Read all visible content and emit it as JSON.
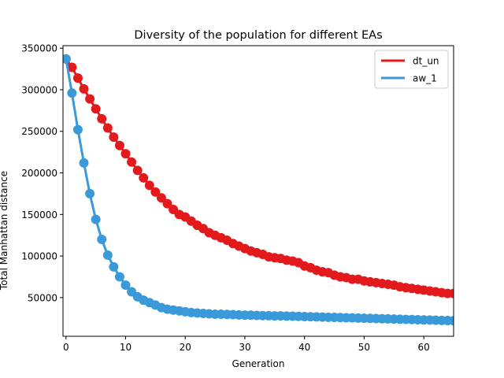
{
  "chart_data": {
    "type": "line",
    "title": "Diversity of the population for different EAs",
    "xlabel": "Generation",
    "ylabel": "Total Manhattan distance",
    "xlim": [
      -0.5,
      65
    ],
    "ylim": [
      3500,
      353000
    ],
    "x_ticks": [
      0,
      10,
      20,
      30,
      40,
      50,
      60
    ],
    "y_ticks": [
      50000,
      100000,
      150000,
      200000,
      250000,
      300000,
      350000
    ],
    "x_tick_labels": [
      "0",
      "10",
      "20",
      "30",
      "40",
      "50",
      "60"
    ],
    "y_tick_labels": [
      "50000",
      "100000",
      "150000",
      "200000",
      "250000",
      "300000",
      "350000"
    ],
    "grid": false,
    "legend_position": "top-right",
    "series": [
      {
        "name": "dt_un",
        "color": "#e31a1c",
        "marker": "circle",
        "x": [
          0,
          1,
          2,
          3,
          4,
          5,
          6,
          7,
          8,
          9,
          10,
          11,
          12,
          13,
          14,
          15,
          16,
          17,
          18,
          19,
          20,
          21,
          22,
          23,
          24,
          25,
          26,
          27,
          28,
          29,
          30,
          31,
          32,
          33,
          34,
          35,
          36,
          37,
          38,
          39,
          40,
          41,
          42,
          43,
          44,
          45,
          46,
          47,
          48,
          49,
          50,
          51,
          52,
          53,
          54,
          55,
          56,
          57,
          58,
          59,
          60,
          61,
          62,
          63,
          64,
          65
        ],
        "values": [
          337000,
          327000,
          314000,
          301000,
          289000,
          277000,
          265000,
          254000,
          243000,
          233000,
          223000,
          213000,
          203000,
          194000,
          185000,
          177000,
          170000,
          163000,
          156000,
          150000,
          147000,
          142000,
          137000,
          133000,
          128000,
          125000,
          122000,
          119000,
          115000,
          112000,
          109000,
          106000,
          104000,
          102000,
          99000,
          98000,
          97000,
          95000,
          94000,
          92000,
          88000,
          86000,
          83000,
          81000,
          80000,
          77000,
          75000,
          74000,
          72000,
          72000,
          70000,
          69000,
          68000,
          67000,
          66000,
          65000,
          63000,
          62000,
          61000,
          60000,
          59000,
          58000,
          57000,
          56000,
          55000,
          55000
        ]
      },
      {
        "name": "aw_1",
        "color": "#3a9ad9",
        "marker": "circle",
        "x": [
          0,
          1,
          2,
          3,
          4,
          5,
          6,
          7,
          8,
          9,
          10,
          11,
          12,
          13,
          14,
          15,
          16,
          17,
          18,
          19,
          20,
          21,
          22,
          23,
          24,
          25,
          26,
          27,
          28,
          29,
          30,
          31,
          32,
          33,
          34,
          35,
          36,
          37,
          38,
          39,
          40,
          41,
          42,
          43,
          44,
          45,
          46,
          47,
          48,
          49,
          50,
          51,
          52,
          53,
          54,
          55,
          56,
          57,
          58,
          59,
          60,
          61,
          62,
          63,
          64,
          65
        ],
        "values": [
          337000,
          296000,
          252000,
          212000,
          175000,
          144000,
          120000,
          101000,
          87000,
          75000,
          65000,
          57000,
          51000,
          47000,
          44000,
          41000,
          38000,
          36000,
          35000,
          34000,
          33000,
          32000,
          31500,
          31000,
          30500,
          30000,
          30000,
          29800,
          29500,
          29200,
          29000,
          28800,
          28600,
          28400,
          28200,
          28000,
          28000,
          27800,
          27600,
          27400,
          27200,
          27000,
          26800,
          26600,
          26400,
          26200,
          26000,
          25800,
          25600,
          25400,
          25200,
          25000,
          24800,
          24600,
          24400,
          24200,
          24000,
          23800,
          23600,
          23400,
          23200,
          23000,
          22800,
          22600,
          22400,
          22200
        ]
      }
    ]
  }
}
